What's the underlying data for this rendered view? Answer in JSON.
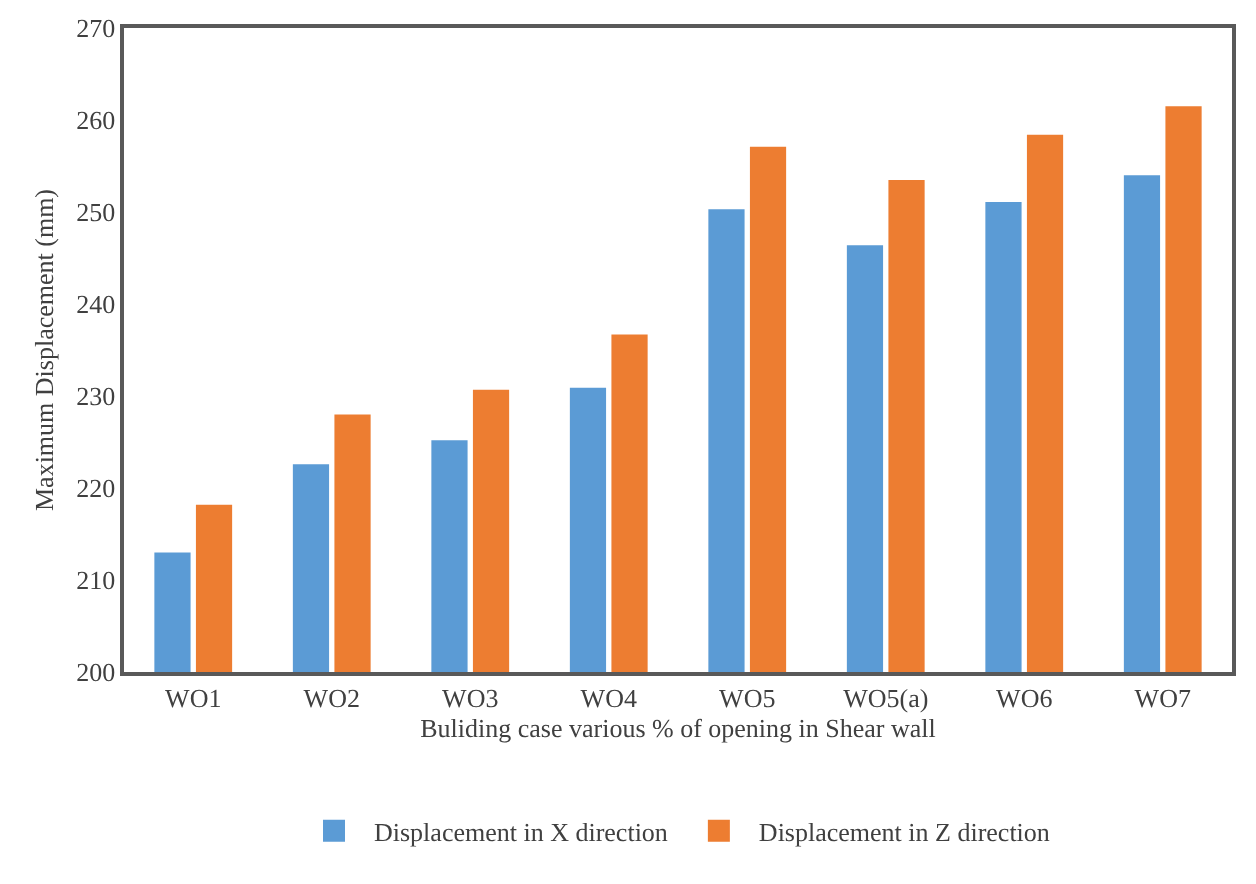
{
  "chart_data": {
    "type": "bar",
    "xlabel": "Buliding case various % of opening in Shear wall",
    "ylabel": "Maximum Displacement (mm)",
    "categories": [
      "WO1",
      "WO2",
      "WO3",
      "WO4",
      "WO5",
      "WO5(a)",
      "WO6",
      "WO7"
    ],
    "series": [
      {
        "name": "Displacement in X direction",
        "color": "#5b9bd5",
        "values": [
          213.1,
          222.7,
          225.3,
          231.0,
          250.4,
          246.5,
          251.2,
          254.1
        ]
      },
      {
        "name": "Displacement in Z direction",
        "color": "#ed7d31",
        "values": [
          218.3,
          228.1,
          230.8,
          236.8,
          257.2,
          253.6,
          258.5,
          261.6
        ]
      }
    ],
    "ylim": [
      200,
      270
    ],
    "yticks": [
      200,
      210,
      220,
      230,
      240,
      250,
      260,
      270
    ],
    "grid": false,
    "legend": "bottom"
  }
}
